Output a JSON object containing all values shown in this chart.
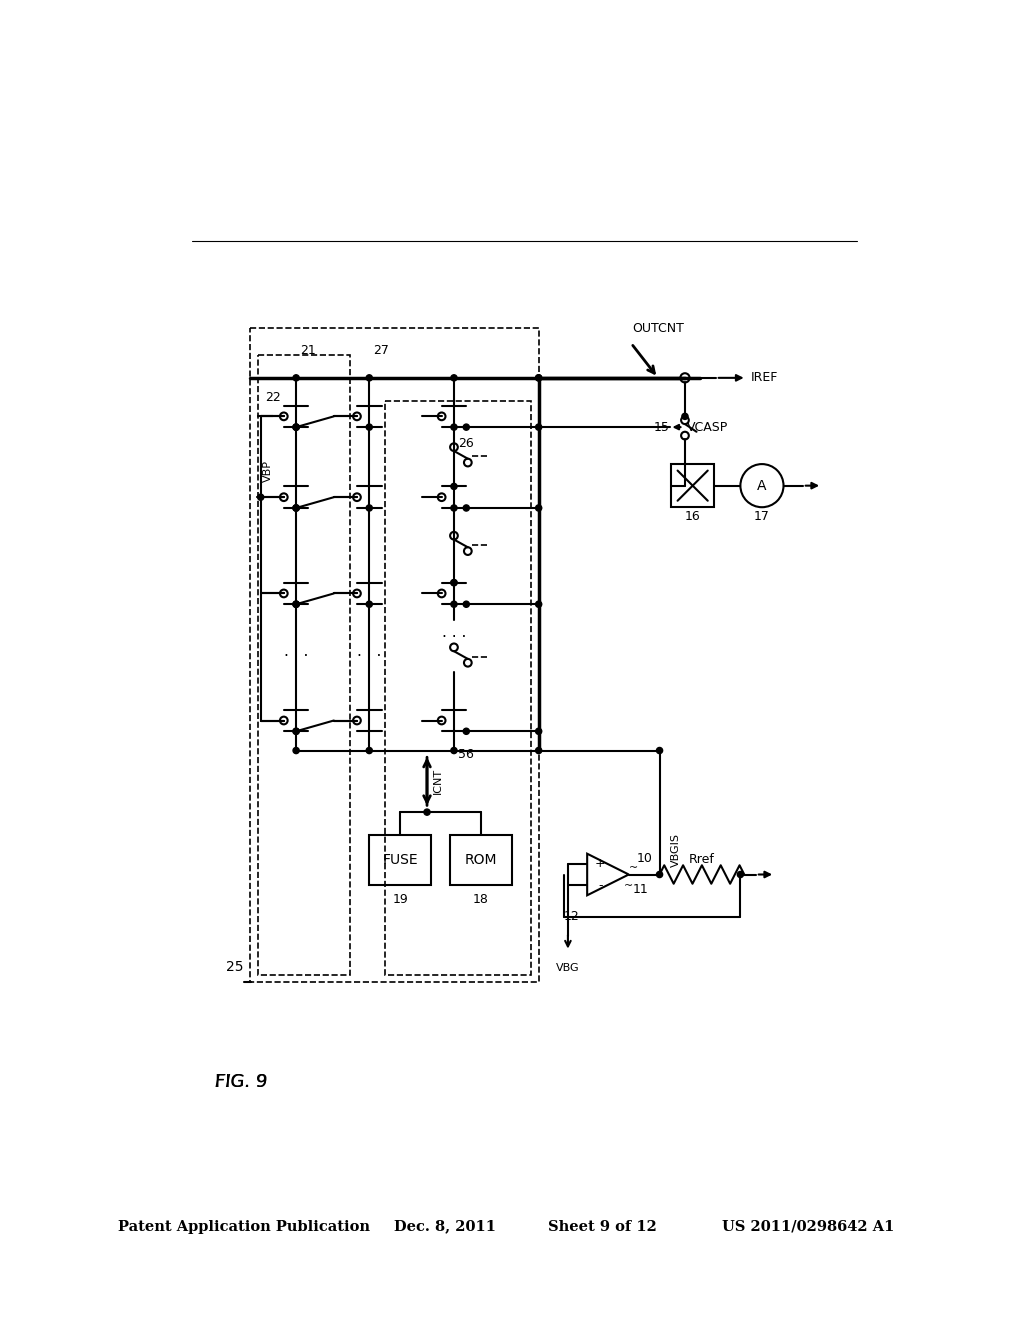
{
  "background_color": "#ffffff",
  "header_left": "Patent Application Publication",
  "header_date": "Dec. 8, 2011",
  "header_sheet": "Sheet 9 of 12",
  "header_patent": "US 2011/0298642 A1",
  "fig_label": "FIG. 9",
  "lw": 1.5,
  "lw_thick": 2.5,
  "lw_dash": 1.2
}
